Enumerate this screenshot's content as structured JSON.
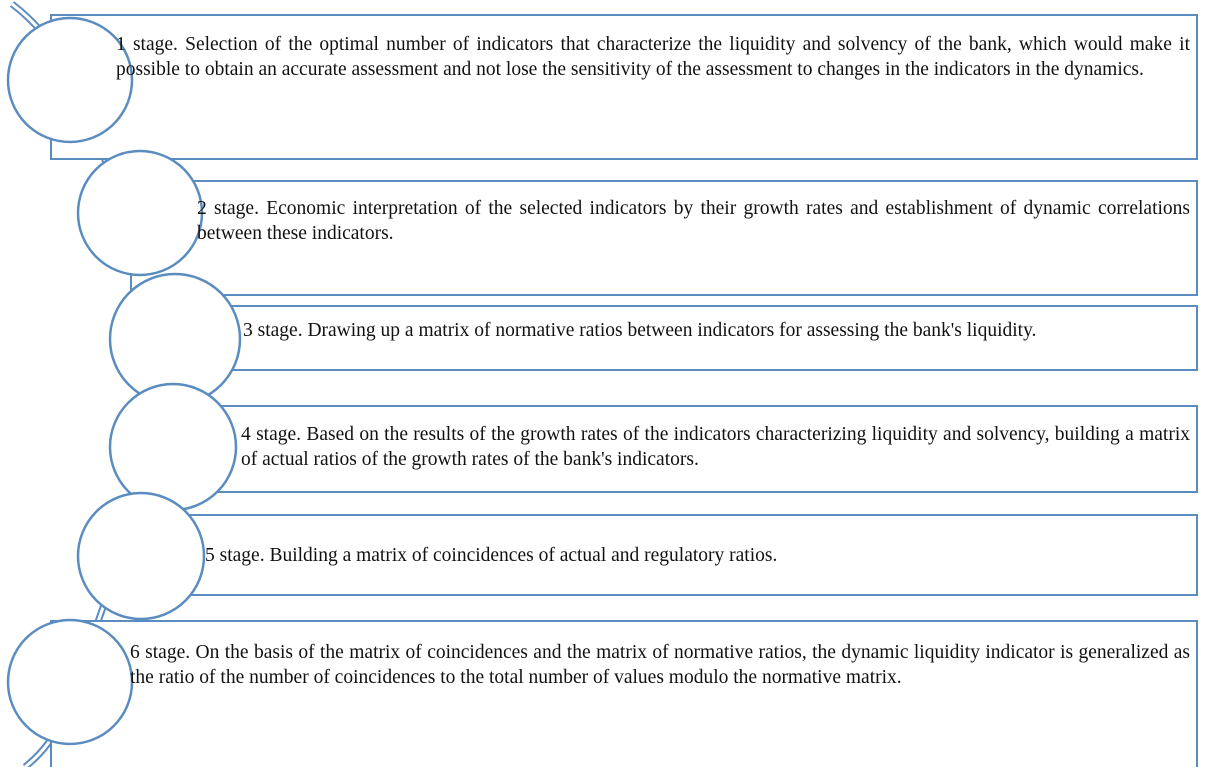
{
  "nodes": [
    {
      "label": "1 stage. Selection of the optimal number of indicators that characterize the liquidity and solvency of the bank, which would make it possible to obtain an accurate assessment and not lose the sensitivity of the assessment to changes in the indicators in the dynamics."
    },
    {
      "label": "2 stage. Economic interpretation of the selected indicators by their growth rates and establishment of dynamic correlations between these indicators."
    },
    {
      "label": "3 stage. Drawing up a matrix of normative ratios between indicators for assessing the bank's liquidity."
    },
    {
      "label": "4 stage. Based on the results of the growth rates of the indicators characterizing liquidity and solvency, building a matrix of actual ratios of the growth rates of the bank's indicators."
    },
    {
      "label": "5 stage. Building a matrix of coincidences of actual and regulatory ratios."
    },
    {
      "label": "6 stage. On the basis of the matrix of coincidences and the matrix of normative ratios, the dynamic liquidity indicator is generalized as the ratio of the number of coincidences to the total number of values modulo the normative matrix."
    }
  ]
}
